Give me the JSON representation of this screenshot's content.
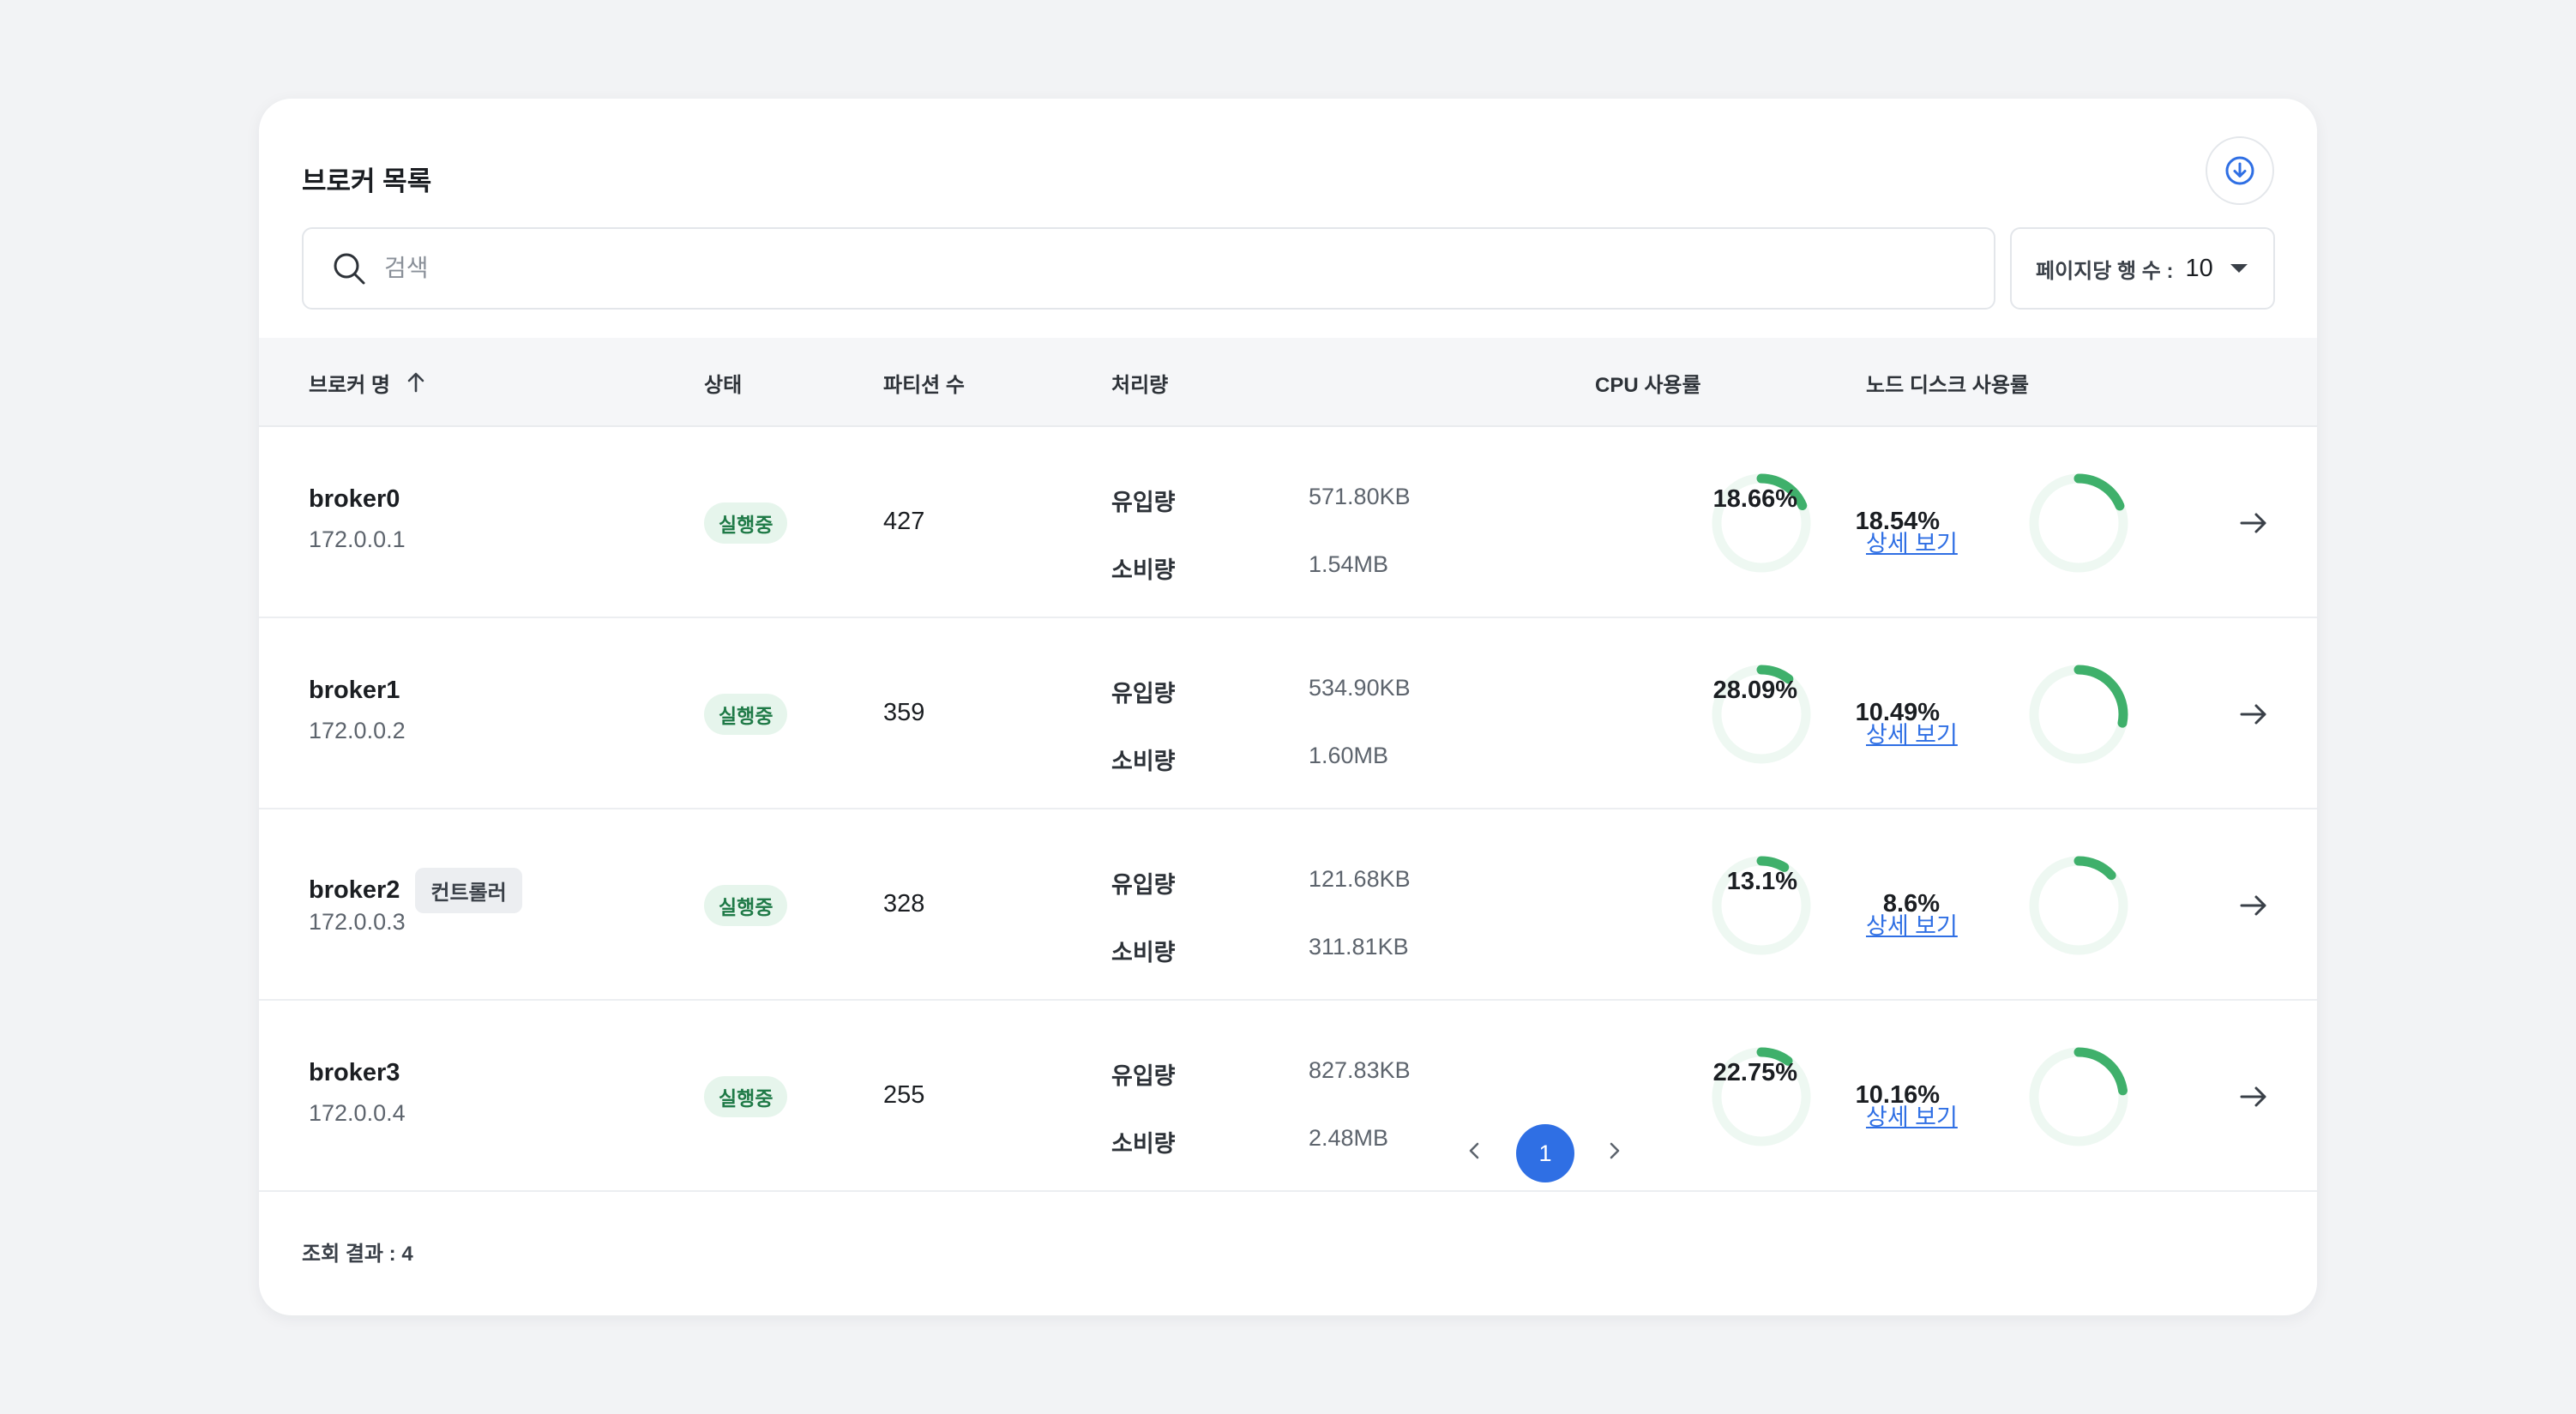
{
  "title": "브로커 목록",
  "search": {
    "placeholder": "검색",
    "value": ""
  },
  "rows_per_page": {
    "label": "페이지당 행 수 :",
    "value": "10"
  },
  "columns": {
    "broker": "브로커 명",
    "status": "상태",
    "partitions": "파티션 수",
    "throughput": "처리량",
    "cpu": "CPU 사용률",
    "disk": "노드 디스크 사용률"
  },
  "colors": {
    "accent": "#2f6fe4",
    "ring_fill": "#3fb06b",
    "ring_track": "#eef8f2",
    "status_bg": "#e6f5ec",
    "status_text": "#1f7a47"
  },
  "brokers": [
    {
      "name": "broker0",
      "badge": "",
      "ip": "172.0.0.1",
      "status": "실행중",
      "partitions": "427",
      "inflow_label": "유입량",
      "inflow": "571.80KB",
      "outflow_label": "소비량",
      "outflow": "1.54MB",
      "cpu": "18.54%",
      "cpu_value": 18.54,
      "disk": "18.66%",
      "disk_value": 18.66,
      "detail": "상세 보기"
    },
    {
      "name": "broker1",
      "badge": "",
      "ip": "172.0.0.2",
      "status": "실행중",
      "partitions": "359",
      "inflow_label": "유입량",
      "inflow": "534.90KB",
      "outflow_label": "소비량",
      "outflow": "1.60MB",
      "cpu": "10.49%",
      "cpu_value": 10.49,
      "disk": "28.09%",
      "disk_value": 28.09,
      "detail": "상세 보기"
    },
    {
      "name": "broker2",
      "badge": "컨트롤러",
      "ip": "172.0.0.3",
      "status": "실행중",
      "partitions": "328",
      "inflow_label": "유입량",
      "inflow": "121.68KB",
      "outflow_label": "소비량",
      "outflow": "311.81KB",
      "cpu": "8.6%",
      "cpu_value": 8.6,
      "disk": "13.1%",
      "disk_value": 13.1,
      "detail": "상세 보기"
    },
    {
      "name": "broker3",
      "badge": "",
      "ip": "172.0.0.4",
      "status": "실행중",
      "partitions": "255",
      "inflow_label": "유입량",
      "inflow": "827.83KB",
      "outflow_label": "소비량",
      "outflow": "2.48MB",
      "cpu": "10.16%",
      "cpu_value": 10.16,
      "disk": "22.75%",
      "disk_value": 22.75,
      "detail": "상세 보기"
    }
  ],
  "footer": {
    "result_count": "조회 결과 : 4"
  },
  "pagination": {
    "current_page": "1"
  },
  "icons": {
    "download": "download-circle-icon",
    "search": "search-icon",
    "caret": "caret-down-icon",
    "sort": "arrow-up-icon",
    "row_action": "arrow-right-icon",
    "prev": "chevron-left-icon",
    "next": "chevron-right-icon"
  }
}
